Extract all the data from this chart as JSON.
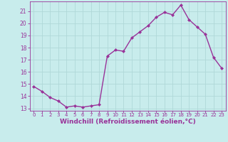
{
  "x": [
    0,
    1,
    2,
    3,
    4,
    5,
    6,
    7,
    8,
    9,
    10,
    11,
    12,
    13,
    14,
    15,
    16,
    17,
    18,
    19,
    20,
    21,
    22,
    23
  ],
  "y": [
    14.8,
    14.4,
    13.9,
    13.6,
    13.1,
    13.2,
    13.1,
    13.2,
    13.3,
    17.3,
    17.8,
    17.7,
    18.8,
    19.3,
    19.8,
    20.5,
    20.9,
    20.7,
    21.5,
    20.3,
    19.7,
    19.1,
    17.2,
    16.3
  ],
  "line_color": "#993399",
  "marker": "D",
  "marker_size": 2.0,
  "bg_color": "#c8ecec",
  "grid_color": "#b0d8d8",
  "xlabel": "Windchill (Refroidissement éolien,°C)",
  "xlabel_color": "#993399",
  "tick_color": "#993399",
  "spine_color": "#993399",
  "ylim": [
    12.8,
    21.8
  ],
  "xlim": [
    -0.5,
    23.5
  ],
  "yticks": [
    13,
    14,
    15,
    16,
    17,
    18,
    19,
    20,
    21
  ],
  "xticks": [
    0,
    1,
    2,
    3,
    4,
    5,
    6,
    7,
    8,
    9,
    10,
    11,
    12,
    13,
    14,
    15,
    16,
    17,
    18,
    19,
    20,
    21,
    22,
    23
  ],
  "xlabel_fontsize": 6.5,
  "xtick_fontsize": 5.0,
  "ytick_fontsize": 5.5,
  "linewidth": 1.0
}
